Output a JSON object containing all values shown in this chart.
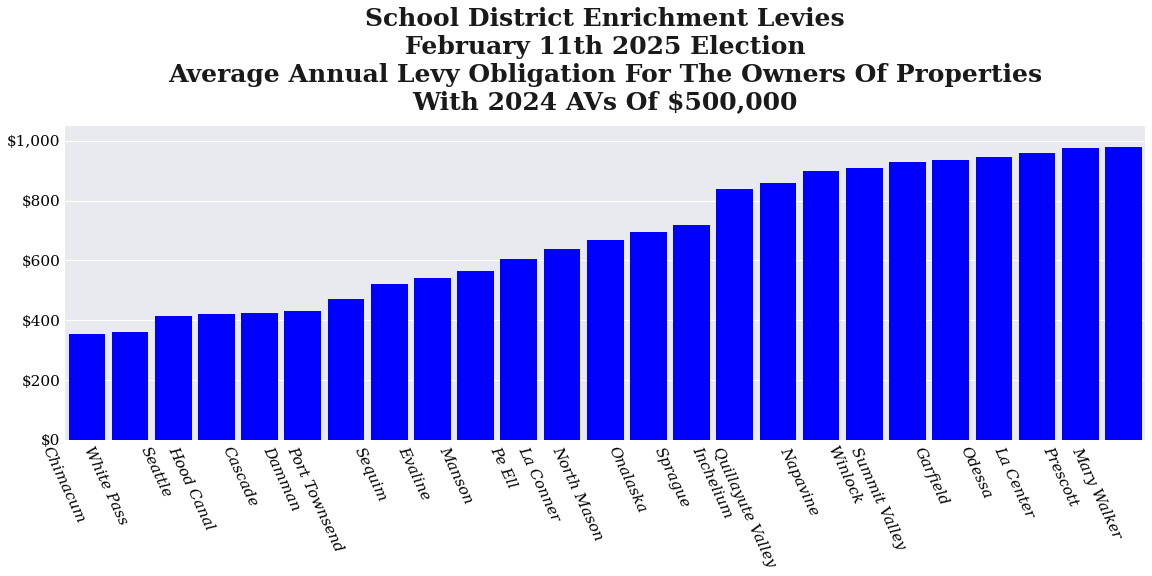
{
  "title": "School District Enrichment Levies\nFebruary 11th 2025 Election\nAverage Annual Levy Obligation For The Owners Of Properties\nWith 2024 AVs Of $500,000",
  "categories": [
    "Chimacum",
    "White Pass",
    "Seattle",
    "Hood Canal",
    "Cascade",
    "Damman",
    "Port Townsend",
    "Sequim",
    "Evaline",
    "Manson",
    "Pe Ell",
    "La Conner",
    "North Mason",
    "Onalaska",
    "Sprague",
    "Inchelium",
    "Quillayute Valley",
    "Napavine",
    "Winlock",
    "Summit Valley",
    "Garfield",
    "Odessa",
    "La Center",
    "Prescott",
    "Mary Walker"
  ],
  "values": [
    355,
    360,
    415,
    420,
    425,
    430,
    470,
    520,
    540,
    565,
    605,
    640,
    668,
    695,
    718,
    840,
    860,
    900,
    910,
    930,
    935,
    945,
    960,
    975,
    980
  ],
  "bar_color": "#0000ff",
  "background_color": "#e8eaf0",
  "ylim": [
    0,
    1050
  ],
  "yticks": [
    0,
    200,
    400,
    600,
    800,
    1000
  ],
  "title_fontsize": 18,
  "tick_fontsize": 11,
  "xtick_rotation": -65
}
